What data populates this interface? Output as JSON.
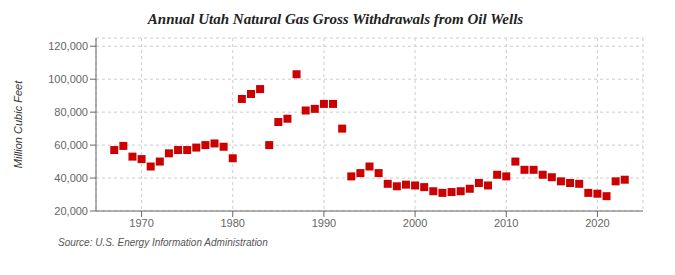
{
  "chart_data": {
    "type": "scatter",
    "title": "Annual Utah Natural Gas Gross Withdrawals from Oil Wells",
    "ylabel": "Million Cubic Feet",
    "annotation": "Source: U.S. Energy Information Administration",
    "color": "#cc0000",
    "marker": "square",
    "grid": true,
    "x": [
      1967,
      1968,
      1969,
      1970,
      1971,
      1972,
      1973,
      1974,
      1975,
      1976,
      1977,
      1978,
      1979,
      1980,
      1981,
      1982,
      1983,
      1984,
      1985,
      1986,
      1987,
      1988,
      1989,
      1990,
      1991,
      1992,
      1993,
      1994,
      1995,
      1996,
      1997,
      1998,
      1999,
      2000,
      2001,
      2002,
      2003,
      2004,
      2005,
      2006,
      2007,
      2008,
      2009,
      2010,
      2011,
      2012,
      2013,
      2014,
      2015,
      2016,
      2017,
      2018,
      2019,
      2020,
      2021,
      2022,
      2023
    ],
    "values": [
      57000,
      59500,
      53000,
      51500,
      47000,
      50000,
      55000,
      57000,
      57000,
      58500,
      60000,
      61000,
      59000,
      52000,
      88000,
      91000,
      94000,
      60000,
      74000,
      76000,
      103000,
      81000,
      82000,
      85000,
      85000,
      70000,
      41000,
      43000,
      47000,
      43000,
      36500,
      35000,
      36000,
      35500,
      34500,
      32000,
      31000,
      31500,
      32000,
      33500,
      37000,
      35500,
      42000,
      41000,
      50000,
      45000,
      45000,
      42000,
      40500,
      38000,
      37000,
      36500,
      31000,
      30500,
      29000,
      38000,
      39000
    ],
    "xlim": [
      1965,
      2025
    ],
    "ylim": [
      20000,
      125000
    ],
    "xticks": [
      1970,
      1980,
      1990,
      2000,
      2010,
      2020
    ],
    "yticks": [
      {
        "value": 20000,
        "label": "20,000"
      },
      {
        "value": 40000,
        "label": "40,000"
      },
      {
        "value": 60000,
        "label": "60,000"
      },
      {
        "value": 80000,
        "label": "80,000"
      },
      {
        "value": 100000,
        "label": "100,000"
      },
      {
        "value": 120000,
        "label": "120,000"
      }
    ]
  }
}
